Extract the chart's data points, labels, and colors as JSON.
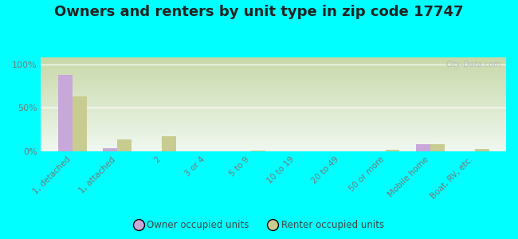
{
  "title": "Owners and renters by unit type in zip code 17747",
  "categories": [
    "1, detached",
    "1, attached",
    "2",
    "3 or 4",
    "5 to 9",
    "10 to 19",
    "20 to 49",
    "50 or more",
    "Mobile home",
    "Boat, RV, etc."
  ],
  "owner_values": [
    88,
    4,
    0.5,
    0,
    0,
    0,
    0,
    0,
    8,
    0
  ],
  "renter_values": [
    63,
    14,
    18,
    0,
    1.5,
    0,
    0,
    2,
    8,
    3
  ],
  "owner_color": "#c8a8d8",
  "renter_color": "#c8cc90",
  "bg_grad_top": "#c8d8a8",
  "bg_grad_bottom": "#f0f8f0",
  "bg_outer": "#00ffff",
  "title_fontsize": 13,
  "ylabel_ticks": [
    "0%",
    "50%",
    "100%"
  ],
  "ytick_vals": [
    0,
    50,
    100
  ],
  "ylim": [
    0,
    108
  ],
  "watermark": "City-Data.com"
}
